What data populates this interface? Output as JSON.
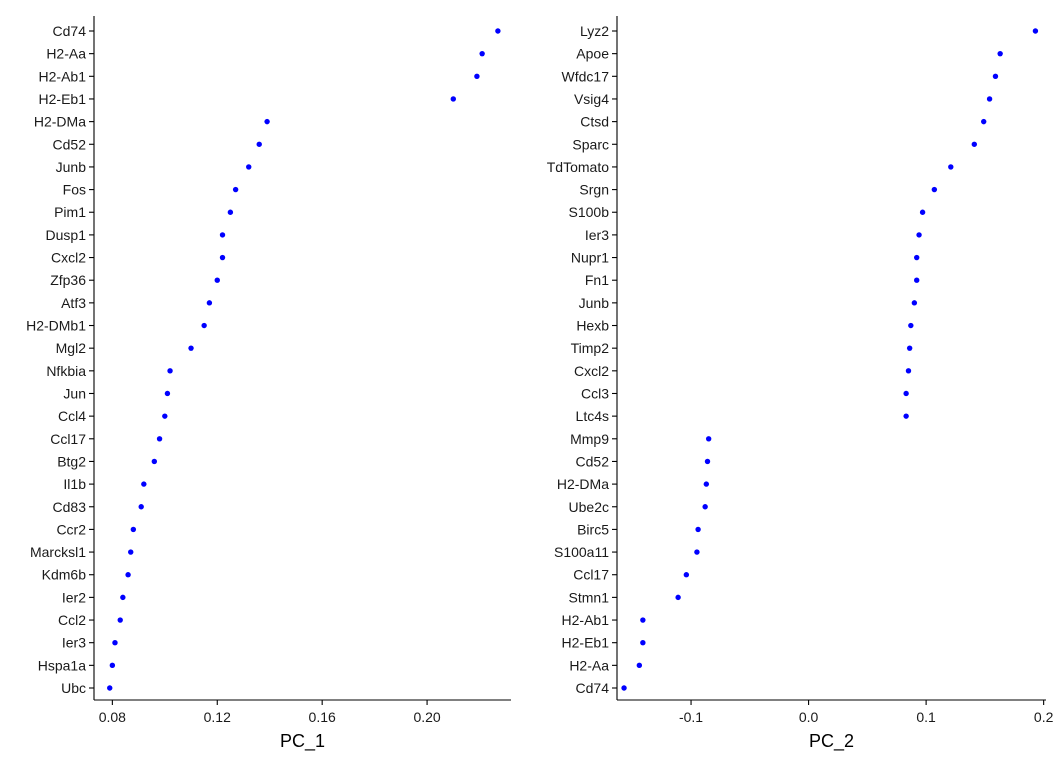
{
  "chart_data": [
    {
      "type": "scatter",
      "xlabel": "PC_1",
      "ylabel": "",
      "xlim": [
        0.073,
        0.232
      ],
      "xticks": [
        0.08,
        0.12,
        0.16,
        0.2
      ],
      "xtick_labels": [
        "0.08",
        "0.12",
        "0.16",
        "0.20"
      ],
      "color": "#0000ff",
      "genes": [
        "Cd74",
        "H2-Aa",
        "H2-Ab1",
        "H2-Eb1",
        "H2-DMa",
        "Cd52",
        "Junb",
        "Fos",
        "Pim1",
        "Dusp1",
        "Cxcl2",
        "Zfp36",
        "Atf3",
        "H2-DMb1",
        "Mgl2",
        "Nfkbia",
        "Jun",
        "Ccl4",
        "Ccl17",
        "Btg2",
        "Il1b",
        "Cd83",
        "Ccr2",
        "Marcksl1",
        "Kdm6b",
        "Ier2",
        "Ccl2",
        "Ier3",
        "Hspa1a",
        "Ubc"
      ],
      "values": [
        0.227,
        0.221,
        0.219,
        0.21,
        0.139,
        0.136,
        0.132,
        0.127,
        0.125,
        0.122,
        0.122,
        0.12,
        0.117,
        0.115,
        0.11,
        0.102,
        0.101,
        0.1,
        0.098,
        0.096,
        0.092,
        0.091,
        0.088,
        0.087,
        0.086,
        0.084,
        0.083,
        0.081,
        0.08,
        0.079
      ]
    },
    {
      "type": "scatter",
      "xlabel": "PC_2",
      "ylabel": "",
      "xlim": [
        -0.163,
        0.202
      ],
      "xticks": [
        -0.1,
        0.0,
        0.1,
        0.2
      ],
      "xtick_labels": [
        "-0.1",
        "0.0",
        "0.1",
        "0.2"
      ],
      "color": "#0000ff",
      "genes": [
        "Lyz2",
        "Apoe",
        "Wfdc17",
        "Vsig4",
        "Ctsd",
        "Sparc",
        "TdTomato",
        "Srgn",
        "S100b",
        "Ier3",
        "Nupr1",
        "Fn1",
        "Junb",
        "Hexb",
        "Timp2",
        "Cxcl2",
        "Ccl3",
        "Ltc4s",
        "Mmp9",
        "Cd52",
        "H2-DMa",
        "Ube2c",
        "Birc5",
        "S100a11",
        "Ccl17",
        "Stmn1",
        "H2-Ab1",
        "H2-Eb1",
        "H2-Aa",
        "Cd74"
      ],
      "values": [
        0.193,
        0.163,
        0.159,
        0.154,
        0.149,
        0.141,
        0.121,
        0.107,
        0.097,
        0.094,
        0.092,
        0.092,
        0.09,
        0.087,
        0.086,
        0.085,
        0.083,
        0.083,
        -0.085,
        -0.086,
        -0.087,
        -0.088,
        -0.094,
        -0.095,
        -0.104,
        -0.111,
        -0.141,
        -0.141,
        -0.144,
        -0.157
      ]
    }
  ]
}
